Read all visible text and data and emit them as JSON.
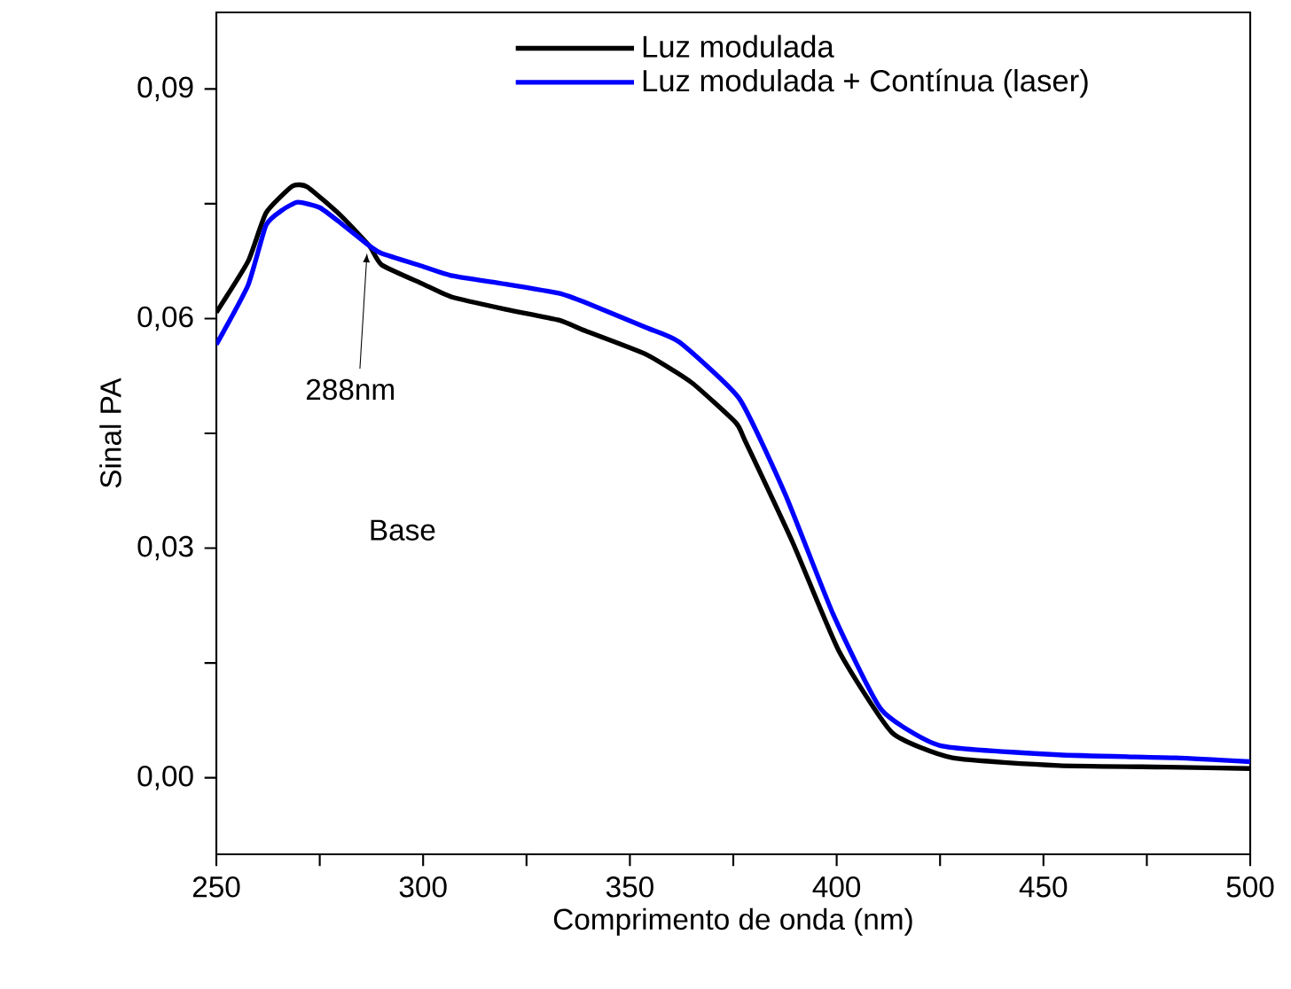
{
  "chart_data": {
    "type": "line",
    "xlabel": "Comprimento de onda (nm)",
    "ylabel": "Sinal PA",
    "series": [
      {
        "name": "Luz modulada",
        "color": "#000000",
        "x": [
          250,
          257.7,
          262,
          268.4,
          272,
          280,
          287,
          290,
          300,
          307,
          320,
          332.8,
          339.2,
          354,
          365,
          375.6,
          377.8,
          389.4,
          400.5,
          413.4,
          428,
          453.7,
          480,
          500
        ],
        "values": [
          0.0608,
          0.0675,
          0.0738,
          0.0773,
          0.0772,
          0.0735,
          0.0695,
          0.067,
          0.0645,
          0.0628,
          0.0612,
          0.0598,
          0.0584,
          0.0553,
          0.0516,
          0.0464,
          0.0441,
          0.0307,
          0.0166,
          0.0059,
          0.0026,
          0.0016,
          0.0014,
          0.0012
        ]
      },
      {
        "name": "Luz modulada + Contínua (laser)",
        "color": "#0000ff",
        "x": [
          250,
          257.7,
          262,
          266,
          269.7,
          275,
          280,
          287,
          290,
          300,
          307,
          320,
          332.8,
          339.2,
          354,
          362,
          376.5,
          387.6,
          399.2,
          410.8,
          425,
          453.7,
          482,
          500
        ],
        "values": [
          0.0566,
          0.0644,
          0.0722,
          0.0742,
          0.0752,
          0.0745,
          0.0725,
          0.0695,
          0.0685,
          0.0668,
          0.0656,
          0.0645,
          0.0633,
          0.0621,
          0.0588,
          0.0569,
          0.0495,
          0.037,
          0.0213,
          0.0089,
          0.0042,
          0.003,
          0.0026,
          0.0021
        ]
      }
    ],
    "xlim": [
      250,
      500
    ],
    "ylim": [
      -0.01,
      0.1
    ],
    "xticks": [
      250,
      {
        "value": 275,
        "label": null
      },
      300,
      {
        "value": 325,
        "label": null
      },
      350,
      {
        "value": 375,
        "label": null
      },
      400,
      {
        "value": 425,
        "label": null
      },
      450,
      {
        "value": 475,
        "label": null
      },
      500
    ],
    "yticks": [
      {
        "value": 0,
        "label": "0,00"
      },
      {
        "value": 0.015,
        "label": null
      },
      {
        "value": 0.03,
        "label": "0,03"
      },
      {
        "value": 0.045,
        "label": null
      },
      {
        "value": 0.06,
        "label": "0,06"
      },
      {
        "value": 0.075,
        "label": null
      },
      {
        "value": 0.09,
        "label": "0,09"
      }
    ],
    "annotations": [
      {
        "text": "288nm",
        "x": 287,
        "y": 0.0695
      },
      "Base"
    ],
    "legend": "top",
    "grid": false,
    "marker": "none",
    "line_style": "solid"
  }
}
